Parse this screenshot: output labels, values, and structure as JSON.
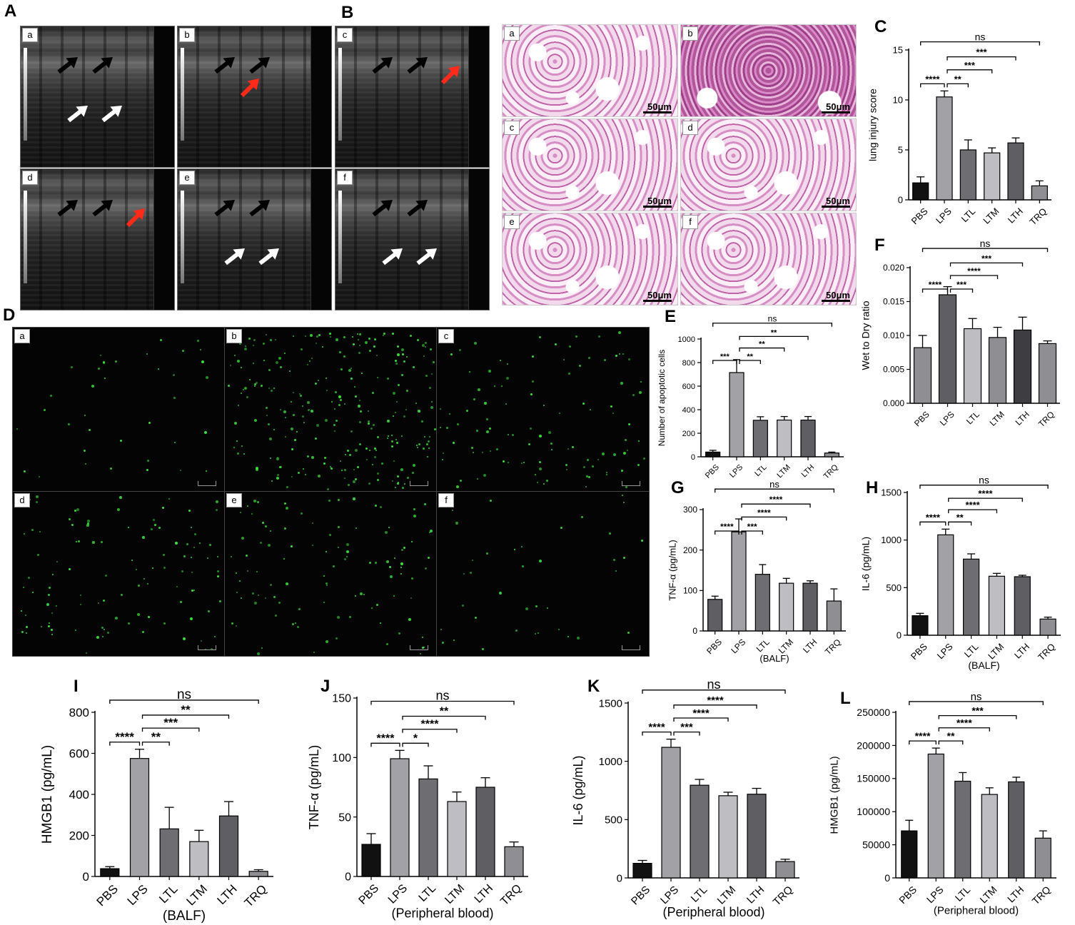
{
  "panel_labels": {
    "A": "A",
    "B": "B",
    "C": "C",
    "D": "D",
    "E": "E",
    "F": "F",
    "G": "G",
    "H": "H",
    "I": "I",
    "J": "J",
    "K": "K",
    "L": "L"
  },
  "subpanel_labels": [
    "a",
    "b",
    "c",
    "d",
    "e",
    "f"
  ],
  "histology_scale": "50μm",
  "ultrasound_arrows": [
    [
      {
        "color": "#000000",
        "at": "upper-left"
      },
      {
        "color": "#000000",
        "at": "upper-right"
      },
      {
        "color": "#ffffff",
        "at": "lower-left"
      },
      {
        "color": "#ffffff",
        "at": "lower-right"
      }
    ],
    [
      {
        "color": "#000000",
        "at": "upper-left"
      },
      {
        "color": "#ff2a1a",
        "at": "middle"
      },
      {
        "color": "#000000",
        "at": "upper-right"
      }
    ],
    [
      {
        "color": "#000000",
        "at": "upper-left"
      },
      {
        "color": "#000000",
        "at": "upper-right"
      },
      {
        "color": "#ff2a1a",
        "at": "right"
      }
    ],
    [
      {
        "color": "#000000",
        "at": "upper-left"
      },
      {
        "color": "#000000",
        "at": "upper-right"
      },
      {
        "color": "#ff2a1a",
        "at": "right"
      }
    ],
    [
      {
        "color": "#000000",
        "at": "upper-left"
      },
      {
        "color": "#000000",
        "at": "upper-right"
      },
      {
        "color": "#ffffff",
        "at": "lower-left"
      },
      {
        "color": "#ffffff",
        "at": "lower-right"
      }
    ],
    [
      {
        "color": "#000000",
        "at": "upper-left"
      },
      {
        "color": "#000000",
        "at": "upper-right"
      },
      {
        "color": "#ffffff",
        "at": "lower-left"
      },
      {
        "color": "#ffffff",
        "at": "lower-right"
      }
    ]
  ],
  "tunel_density": [
    0.05,
    1.0,
    0.35,
    0.35,
    0.35,
    0.05
  ],
  "chart_data": [
    {
      "id": "C",
      "type": "bar",
      "categories": [
        "PBS",
        "LPS",
        "LTL",
        "LTM",
        "LTH",
        "TRQ"
      ],
      "values": [
        1.7,
        10.3,
        5.0,
        4.7,
        5.7,
        1.4
      ],
      "errors": [
        0.6,
        0.6,
        1.0,
        0.5,
        0.5,
        0.5
      ],
      "ylabel": "lung injury score",
      "xlabel": "",
      "ylim": [
        0,
        15
      ],
      "yticks": [
        0,
        5,
        10,
        15
      ],
      "ytick_labels": [
        "0",
        "5",
        "10",
        "15"
      ],
      "sig": [
        {
          "from": 1,
          "to": 2,
          "label": "**"
        },
        {
          "from": 1,
          "to": 3,
          "label": "***"
        },
        {
          "from": 1,
          "to": 4,
          "label": "***"
        },
        {
          "from": 0,
          "to": 5,
          "label": "ns"
        },
        {
          "from": 0,
          "to": 1,
          "label": "****"
        }
      ],
      "colors": [
        "#111111",
        "#a1a1a6",
        "#6d6d72",
        "#bdbdc2",
        "#5e5e63",
        "#8e8e93"
      ]
    },
    {
      "id": "F",
      "type": "bar",
      "categories": [
        "PBS",
        "LPS",
        "LTL",
        "LTM",
        "LTH",
        "TRQ"
      ],
      "values": [
        0.0082,
        0.016,
        0.011,
        0.0097,
        0.0108,
        0.0088
      ],
      "errors": [
        0.0018,
        0.0012,
        0.0015,
        0.0015,
        0.0019,
        0.0004
      ],
      "ylabel": "Wet to Dry ratio",
      "xlabel": "",
      "ylim": [
        0,
        0.02
      ],
      "yticks": [
        0,
        0.005,
        0.01,
        0.015,
        0.02
      ],
      "ytick_labels": [
        "0.000",
        "0.005",
        "0.010",
        "0.015",
        "0.020"
      ],
      "sig": [
        {
          "from": 1,
          "to": 2,
          "label": "***"
        },
        {
          "from": 1,
          "to": 3,
          "label": "****"
        },
        {
          "from": 1,
          "to": 4,
          "label": "***"
        },
        {
          "from": 0,
          "to": 5,
          "label": "ns"
        },
        {
          "from": 0,
          "to": 1,
          "label": "****"
        }
      ],
      "colors": [
        "#8e8e93",
        "#5e5e63",
        "#bdbdc2",
        "#8e8e93",
        "#3d3d42",
        "#8e8e93"
      ]
    },
    {
      "id": "E",
      "type": "bar",
      "categories": [
        "PBS",
        "LPS",
        "LTL",
        "LTM",
        "LTH",
        "TRQ"
      ],
      "values": [
        40,
        715,
        310,
        312,
        312,
        32
      ],
      "errors": [
        15,
        110,
        30,
        30,
        30,
        8
      ],
      "ylabel": "Number of apoptotic cells",
      "xlabel": "",
      "ylim": [
        0,
        1000
      ],
      "yticks": [
        0,
        200,
        400,
        600,
        800,
        1000
      ],
      "ytick_labels": [
        "0",
        "200",
        "400",
        "600",
        "800",
        "1000"
      ],
      "sig": [
        {
          "from": 1,
          "to": 2,
          "label": "**"
        },
        {
          "from": 1,
          "to": 3,
          "label": "**"
        },
        {
          "from": 1,
          "to": 4,
          "label": "**"
        },
        {
          "from": 0,
          "to": 5,
          "label": "ns"
        },
        {
          "from": 0,
          "to": 1,
          "label": "***"
        }
      ],
      "colors": [
        "#111111",
        "#a1a1a6",
        "#6d6d72",
        "#bdbdc2",
        "#5e5e63",
        "#8e8e93"
      ]
    },
    {
      "id": "G",
      "type": "bar",
      "categories": [
        "PBS",
        "LPS",
        "LTL",
        "LTM",
        "LTH",
        "TRQ"
      ],
      "values": [
        78,
        245,
        140,
        118,
        118,
        74
      ],
      "errors": [
        8,
        32,
        24,
        12,
        6,
        30
      ],
      "ylabel": "TNF-α (pg/mL)",
      "xlabel": "(BALF)",
      "ylim": [
        0,
        300
      ],
      "yticks": [
        0,
        100,
        200,
        300
      ],
      "ytick_labels": [
        "0",
        "100",
        "200",
        "300"
      ],
      "sig": [
        {
          "from": 1,
          "to": 2,
          "label": "***"
        },
        {
          "from": 1,
          "to": 3,
          "label": "****"
        },
        {
          "from": 1,
          "to": 4,
          "label": "****"
        },
        {
          "from": 0,
          "to": 5,
          "label": "ns"
        },
        {
          "from": 0,
          "to": 1,
          "label": "****"
        }
      ],
      "colors": [
        "#5e5e63",
        "#a1a1a6",
        "#6d6d72",
        "#bdbdc2",
        "#5e5e63",
        "#8e8e93"
      ]
    },
    {
      "id": "H",
      "type": "bar",
      "categories": [
        "PBS",
        "LPS",
        "LTL",
        "LTM",
        "LTH",
        "TRQ"
      ],
      "values": [
        205,
        1055,
        800,
        620,
        615,
        170
      ],
      "errors": [
        25,
        60,
        55,
        30,
        15,
        20
      ],
      "ylabel": "IL-6 (pg/mL)",
      "xlabel": "(BALF)",
      "ylim": [
        0,
        1500
      ],
      "yticks": [
        0,
        500,
        1000,
        1500
      ],
      "ytick_labels": [
        "0",
        "500",
        "1000",
        "1500"
      ],
      "sig": [
        {
          "from": 1,
          "to": 2,
          "label": "**"
        },
        {
          "from": 1,
          "to": 3,
          "label": "****"
        },
        {
          "from": 1,
          "to": 4,
          "label": "****"
        },
        {
          "from": 0,
          "to": 5,
          "label": "ns"
        },
        {
          "from": 0,
          "to": 1,
          "label": "****"
        }
      ],
      "colors": [
        "#111111",
        "#a1a1a6",
        "#6d6d72",
        "#bdbdc2",
        "#5e5e63",
        "#8e8e93"
      ]
    },
    {
      "id": "I",
      "type": "bar",
      "categories": [
        "PBS",
        "LPS",
        "LTL",
        "LTM",
        "LTH",
        "TRQ"
      ],
      "values": [
        38,
        575,
        232,
        170,
        295,
        25
      ],
      "errors": [
        10,
        45,
        105,
        55,
        70,
        8
      ],
      "ylabel": "HMGB1 (pg/mL)",
      "xlabel": "(BALF)",
      "ylim": [
        0,
        800
      ],
      "yticks": [
        0,
        200,
        400,
        600,
        800
      ],
      "ytick_labels": [
        "0",
        "200",
        "400",
        "600",
        "800"
      ],
      "sig": [
        {
          "from": 1,
          "to": 2,
          "label": "**"
        },
        {
          "from": 1,
          "to": 3,
          "label": "***"
        },
        {
          "from": 1,
          "to": 4,
          "label": "**"
        },
        {
          "from": 0,
          "to": 5,
          "label": "ns"
        },
        {
          "from": 0,
          "to": 1,
          "label": "****"
        }
      ],
      "colors": [
        "#111111",
        "#a1a1a6",
        "#6d6d72",
        "#bdbdc2",
        "#5e5e63",
        "#8e8e93"
      ]
    },
    {
      "id": "J",
      "type": "bar",
      "categories": [
        "PBS",
        "LPS",
        "LTL",
        "LTM",
        "LTH",
        "TRQ"
      ],
      "values": [
        27,
        99,
        82,
        63,
        75,
        25
      ],
      "errors": [
        9,
        7,
        11,
        8,
        8,
        4
      ],
      "ylabel": "TNF-α (pg/mL)",
      "xlabel": "(Peripheral blood)",
      "ylim": [
        0,
        150
      ],
      "yticks": [
        0,
        50,
        100,
        150
      ],
      "ytick_labels": [
        "0",
        "50",
        "100",
        "150"
      ],
      "sig": [
        {
          "from": 1,
          "to": 2,
          "label": "*"
        },
        {
          "from": 1,
          "to": 3,
          "label": "****"
        },
        {
          "from": 1,
          "to": 4,
          "label": "**"
        },
        {
          "from": 0,
          "to": 5,
          "label": "ns"
        },
        {
          "from": 0,
          "to": 1,
          "label": "****"
        }
      ],
      "colors": [
        "#111111",
        "#a1a1a6",
        "#6d6d72",
        "#bdbdc2",
        "#5e5e63",
        "#8e8e93"
      ]
    },
    {
      "id": "K",
      "type": "bar",
      "categories": [
        "PBS",
        "LPS",
        "LTL",
        "LTM",
        "LTH",
        "TRQ"
      ],
      "values": [
        125,
        1120,
        795,
        705,
        718,
        140
      ],
      "errors": [
        25,
        70,
        50,
        30,
        50,
        20
      ],
      "ylabel": "IL-6 (pg/mL)",
      "xlabel": "(Peripheral blood)",
      "ylim": [
        0,
        1500
      ],
      "yticks": [
        0,
        500,
        1000,
        1500
      ],
      "ytick_labels": [
        "0",
        "500",
        "1000",
        "1500"
      ],
      "sig": [
        {
          "from": 1,
          "to": 2,
          "label": "***"
        },
        {
          "from": 1,
          "to": 3,
          "label": "****"
        },
        {
          "from": 1,
          "to": 4,
          "label": "****"
        },
        {
          "from": 0,
          "to": 5,
          "label": "ns"
        },
        {
          "from": 0,
          "to": 1,
          "label": "****"
        }
      ],
      "colors": [
        "#111111",
        "#a1a1a6",
        "#6d6d72",
        "#bdbdc2",
        "#5e5e63",
        "#8e8e93"
      ]
    },
    {
      "id": "L",
      "type": "bar",
      "categories": [
        "PBS",
        "LPS",
        "LTL",
        "LTM",
        "LTH",
        "TRQ"
      ],
      "values": [
        71000,
        187000,
        146000,
        126000,
        145000,
        60000
      ],
      "errors": [
        16000,
        9000,
        13000,
        10000,
        7000,
        11000
      ],
      "ylabel": "HMGB1 (pg/mL)",
      "xlabel": "(Peripheral blood)",
      "ylim": [
        0,
        250000
      ],
      "yticks": [
        0,
        50000,
        100000,
        150000,
        200000,
        250000
      ],
      "ytick_labels": [
        "0",
        "50000",
        "100000",
        "150000",
        "200000",
        "250000"
      ],
      "sig": [
        {
          "from": 1,
          "to": 2,
          "label": "**"
        },
        {
          "from": 1,
          "to": 3,
          "label": "****"
        },
        {
          "from": 1,
          "to": 4,
          "label": "***"
        },
        {
          "from": 0,
          "to": 5,
          "label": "ns"
        },
        {
          "from": 0,
          "to": 1,
          "label": "****"
        }
      ],
      "colors": [
        "#111111",
        "#a1a1a6",
        "#6d6d72",
        "#bdbdc2",
        "#5e5e63",
        "#8e8e93"
      ]
    }
  ]
}
